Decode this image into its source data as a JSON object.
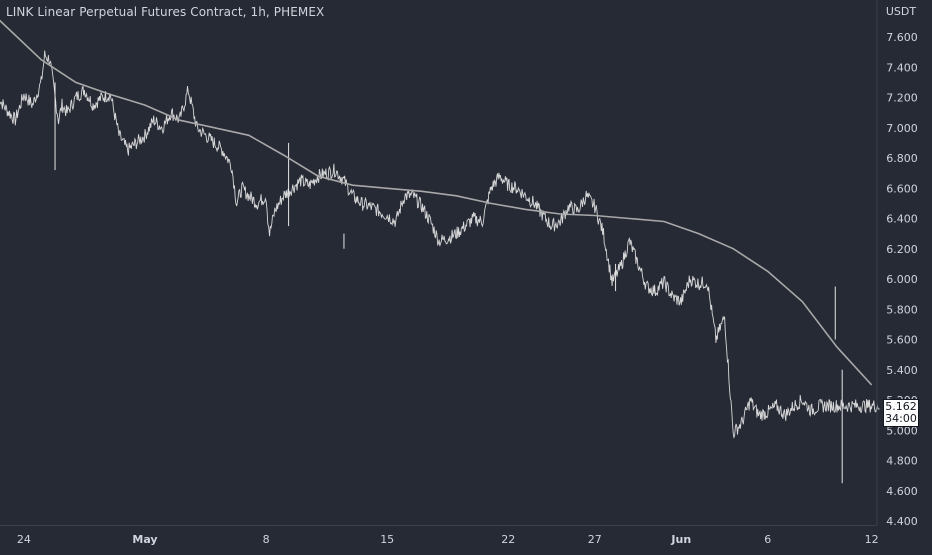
{
  "header": {
    "title": "LINK Linear Perpetual Futures Contract, 1h, PHEMEX"
  },
  "price_tag": {
    "price": "5.162",
    "countdown": "34:00"
  },
  "colors": {
    "background": "#262a35",
    "candle": "#e6e6e6",
    "ma_line": "#a8a8a8",
    "axis_text": "#d1d4dc",
    "border": "#3a3e4a"
  },
  "chart_data": {
    "type": "line",
    "title": "LINK Linear Perpetual Futures Contract, 1h, PHEMEX",
    "currency": "USDT",
    "ylim": [
      4.4,
      7.75
    ],
    "y_ticks": [
      "7.600",
      "7.400",
      "7.200",
      "7.000",
      "6.800",
      "6.600",
      "6.400",
      "6.200",
      "6.000",
      "5.800",
      "5.600",
      "5.400",
      "5.200",
      "5.000",
      "4.800",
      "4.600",
      "4.400"
    ],
    "x_tick_labels": [
      "24",
      "May",
      "8",
      "15",
      "22",
      "27",
      "Jun",
      "6",
      "12"
    ],
    "x_ticks_days": [
      -7,
      0,
      7,
      14,
      21,
      26,
      31,
      36,
      42
    ],
    "xlim_days": [
      -8.5,
      43
    ],
    "series": [
      {
        "style": "price",
        "x_days": [
          -8.5,
          -8,
          -7.5,
          -7,
          -6.5,
          -6,
          -5.8,
          -5.5,
          -5.2,
          -5,
          -4.8,
          -4.5,
          -4,
          -3.5,
          -3,
          -2.5,
          -2,
          -1.5,
          -1,
          -0.5,
          0,
          0.5,
          1,
          1.5,
          2,
          2.5,
          3,
          3.5,
          4,
          4.5,
          5,
          5.3,
          5.6,
          6,
          6.5,
          7,
          7.1,
          7.2,
          7.5,
          8,
          8.5,
          9,
          9.5,
          10,
          10.5,
          11,
          11.5,
          12,
          12.5,
          13,
          13.5,
          14,
          14.5,
          15,
          15.5,
          16,
          16.5,
          17,
          17.5,
          18,
          18.5,
          19,
          19.5,
          20,
          20.5,
          21,
          21.5,
          22,
          22.5,
          23,
          23.5,
          24,
          24.5,
          25,
          25.5,
          26,
          26.5,
          27,
          27.5,
          28,
          28.5,
          29,
          29.5,
          30,
          30.5,
          31,
          31.5,
          32,
          32.5,
          33,
          33.5,
          34,
          34.5,
          35,
          35.2,
          35.5,
          36,
          36.5,
          37,
          37.5,
          38,
          38.5,
          39,
          39.5,
          40,
          40.2,
          40.4,
          40.7,
          41,
          41.5,
          42,
          42.5,
          43
        ],
        "values": [
          7.2,
          7.12,
          7.05,
          7.22,
          7.15,
          7.3,
          7.48,
          7.45,
          7.2,
          7.05,
          7.15,
          7.1,
          7.2,
          7.25,
          7.15,
          7.2,
          7.22,
          6.95,
          6.85,
          6.9,
          6.95,
          7.05,
          7.0,
          7.1,
          7.05,
          7.25,
          7.0,
          6.95,
          6.9,
          6.85,
          6.75,
          6.5,
          6.6,
          6.55,
          6.5,
          6.55,
          6.4,
          6.3,
          6.45,
          6.55,
          6.6,
          6.65,
          6.62,
          6.68,
          6.7,
          6.72,
          6.65,
          6.55,
          6.5,
          6.48,
          6.45,
          6.42,
          6.38,
          6.55,
          6.55,
          6.48,
          6.38,
          6.25,
          6.27,
          6.3,
          6.35,
          6.4,
          6.38,
          6.6,
          6.68,
          6.62,
          6.6,
          6.55,
          6.5,
          6.42,
          6.35,
          6.38,
          6.48,
          6.45,
          6.55,
          6.48,
          6.3,
          5.98,
          6.08,
          6.25,
          6.1,
          5.95,
          5.92,
          5.98,
          5.88,
          5.85,
          6.0,
          5.97,
          5.98,
          5.6,
          5.75,
          4.98,
          5.05,
          5.2,
          5.15,
          5.1,
          5.12,
          5.16,
          5.1,
          5.16,
          5.2,
          5.13,
          5.16,
          5.162,
          5.162,
          5.162,
          5.162,
          5.162,
          5.162,
          5.162,
          5.162,
          5.162,
          5.162
        ]
      },
      {
        "style": "moving-average",
        "x_days": [
          -8.5,
          -6,
          -4,
          -2,
          0,
          2,
          4,
          6,
          8,
          10,
          12,
          14,
          16,
          18,
          20,
          22,
          24,
          26,
          28,
          30,
          32,
          34,
          36,
          38,
          40,
          42
        ],
        "values": [
          7.72,
          7.45,
          7.3,
          7.22,
          7.15,
          7.05,
          7.0,
          6.95,
          6.82,
          6.68,
          6.62,
          6.6,
          6.58,
          6.55,
          6.5,
          6.46,
          6.43,
          6.42,
          6.4,
          6.38,
          6.3,
          6.2,
          6.05,
          5.85,
          5.55,
          5.3
        ]
      }
    ],
    "last_price": 5.162
  }
}
